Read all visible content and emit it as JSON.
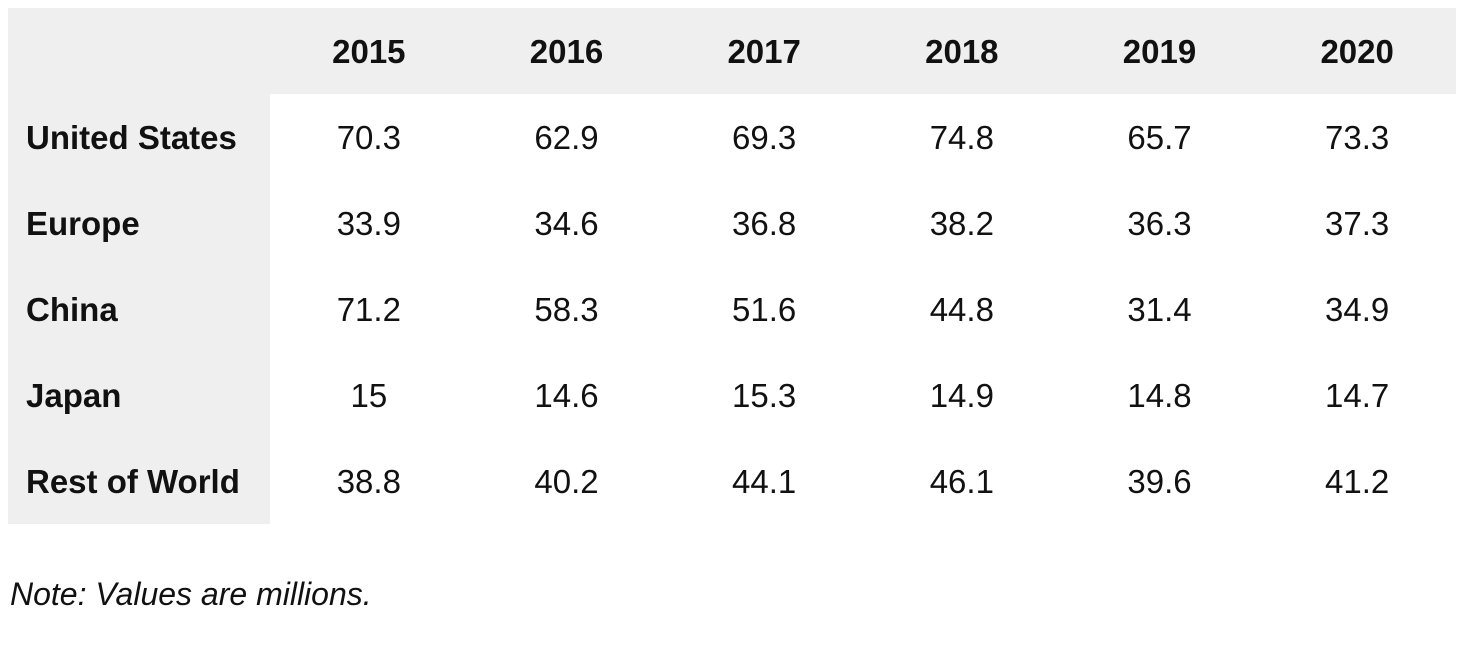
{
  "chart_data": {
    "type": "table",
    "title": "",
    "columns": [
      "2015",
      "2016",
      "2017",
      "2018",
      "2019",
      "2020"
    ],
    "rows": [
      {
        "label": "United States",
        "values": [
          "70.3",
          "62.9",
          "69.3",
          "74.8",
          "65.7",
          "73.3"
        ]
      },
      {
        "label": "Europe",
        "values": [
          "33.9",
          "34.6",
          "36.8",
          "38.2",
          "36.3",
          "37.3"
        ]
      },
      {
        "label": "China",
        "values": [
          "71.2",
          "58.3",
          "51.6",
          "44.8",
          "31.4",
          "34.9"
        ]
      },
      {
        "label": "Japan",
        "values": [
          "15",
          "14.6",
          "15.3",
          "14.9",
          "14.8",
          "14.7"
        ]
      },
      {
        "label": "Rest of World",
        "values": [
          "38.8",
          "40.2",
          "44.1",
          "46.1",
          "39.6",
          "41.2"
        ]
      }
    ],
    "note": "Note: Values are millions.",
    "layout": {
      "header_bg": "#efefef",
      "label_col_bg": "#efefef",
      "cell_bg": "#ffffff",
      "text_color": "#111111"
    }
  }
}
